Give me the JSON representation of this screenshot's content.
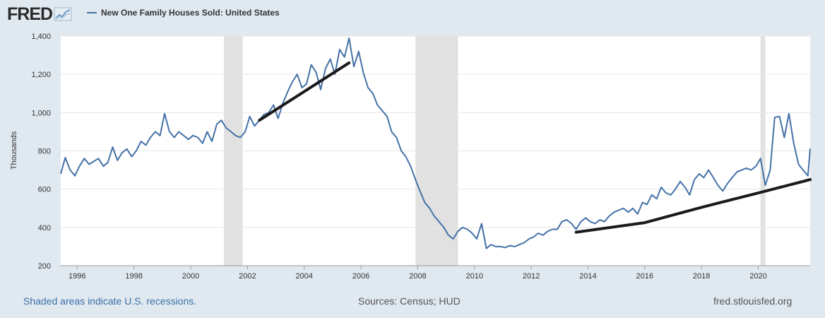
{
  "header": {
    "logo_text": "FRED",
    "logo_icon": "chart-line-icon",
    "series_label": "New One Family Houses Sold: United States"
  },
  "footer": {
    "recession_note": "Shaded areas indicate U.S. recessions.",
    "sources": "Sources: Census; HUD",
    "site": "fred.stlouisfed.org"
  },
  "colors": {
    "background": "#e1e9f0",
    "plot_bg": "#ffffff",
    "series": "#4572a7",
    "recession": "#e1e1e1",
    "trend": "#1a1a1a"
  },
  "chart_data": {
    "type": "line",
    "title": "",
    "xlabel": "",
    "ylabel": "Thousands",
    "xlim": [
      1995.42,
      2021.83
    ],
    "ylim": [
      200,
      1400
    ],
    "x_ticks": [
      "1996",
      "1998",
      "2000",
      "2002",
      "2004",
      "2006",
      "2008",
      "2010",
      "2012",
      "2014",
      "2016",
      "2018",
      "2020"
    ],
    "y_ticks": [
      "200",
      "400",
      "600",
      "800",
      "1,000",
      "1,200",
      "1,400"
    ],
    "grid": "horizontal",
    "recessions": [
      [
        2001.17,
        2001.83
      ],
      [
        2007.92,
        2009.42
      ],
      [
        2020.08,
        2020.25
      ]
    ],
    "series": [
      {
        "name": "New One Family Houses Sold: United States",
        "points": [
          [
            1995.42,
            680
          ],
          [
            1995.58,
            765
          ],
          [
            1995.75,
            700
          ],
          [
            1995.92,
            670
          ],
          [
            1996.08,
            720
          ],
          [
            1996.25,
            760
          ],
          [
            1996.42,
            730
          ],
          [
            1996.58,
            745
          ],
          [
            1996.75,
            760
          ],
          [
            1996.92,
            720
          ],
          [
            1997.08,
            740
          ],
          [
            1997.25,
            820
          ],
          [
            1997.42,
            750
          ],
          [
            1997.58,
            790
          ],
          [
            1997.75,
            810
          ],
          [
            1997.92,
            770
          ],
          [
            1998.08,
            800
          ],
          [
            1998.25,
            850
          ],
          [
            1998.42,
            830
          ],
          [
            1998.58,
            870
          ],
          [
            1998.75,
            900
          ],
          [
            1998.92,
            880
          ],
          [
            1999.08,
            995
          ],
          [
            1999.25,
            900
          ],
          [
            1999.42,
            870
          ],
          [
            1999.58,
            900
          ],
          [
            1999.75,
            880
          ],
          [
            1999.92,
            860
          ],
          [
            2000.08,
            880
          ],
          [
            2000.25,
            870
          ],
          [
            2000.42,
            840
          ],
          [
            2000.58,
            900
          ],
          [
            2000.75,
            850
          ],
          [
            2000.92,
            940
          ],
          [
            2001.08,
            960
          ],
          [
            2001.25,
            920
          ],
          [
            2001.42,
            900
          ],
          [
            2001.58,
            880
          ],
          [
            2001.75,
            870
          ],
          [
            2001.92,
            900
          ],
          [
            2002.08,
            980
          ],
          [
            2002.25,
            930
          ],
          [
            2002.42,
            960
          ],
          [
            2002.58,
            990
          ],
          [
            2002.75,
            1000
          ],
          [
            2002.92,
            1040
          ],
          [
            2003.08,
            970
          ],
          [
            2003.25,
            1050
          ],
          [
            2003.42,
            1110
          ],
          [
            2003.58,
            1160
          ],
          [
            2003.75,
            1200
          ],
          [
            2003.92,
            1130
          ],
          [
            2004.08,
            1150
          ],
          [
            2004.25,
            1250
          ],
          [
            2004.42,
            1210
          ],
          [
            2004.58,
            1120
          ],
          [
            2004.75,
            1230
          ],
          [
            2004.92,
            1280
          ],
          [
            2005.08,
            1200
          ],
          [
            2005.25,
            1330
          ],
          [
            2005.42,
            1290
          ],
          [
            2005.58,
            1389
          ],
          [
            2005.75,
            1240
          ],
          [
            2005.92,
            1320
          ],
          [
            2006.08,
            1210
          ],
          [
            2006.25,
            1130
          ],
          [
            2006.42,
            1100
          ],
          [
            2006.58,
            1040
          ],
          [
            2006.75,
            1010
          ],
          [
            2006.92,
            980
          ],
          [
            2007.08,
            900
          ],
          [
            2007.25,
            870
          ],
          [
            2007.42,
            800
          ],
          [
            2007.58,
            770
          ],
          [
            2007.75,
            720
          ],
          [
            2007.92,
            650
          ],
          [
            2008.08,
            590
          ],
          [
            2008.25,
            530
          ],
          [
            2008.42,
            500
          ],
          [
            2008.58,
            460
          ],
          [
            2008.75,
            430
          ],
          [
            2008.92,
            400
          ],
          [
            2009.08,
            360
          ],
          [
            2009.25,
            340
          ],
          [
            2009.42,
            380
          ],
          [
            2009.58,
            400
          ],
          [
            2009.75,
            390
          ],
          [
            2009.92,
            370
          ],
          [
            2010.08,
            340
          ],
          [
            2010.25,
            420
          ],
          [
            2010.42,
            290
          ],
          [
            2010.58,
            310
          ],
          [
            2010.75,
            300
          ],
          [
            2010.92,
            300
          ],
          [
            2011.08,
            295
          ],
          [
            2011.25,
            305
          ],
          [
            2011.42,
            300
          ],
          [
            2011.58,
            310
          ],
          [
            2011.75,
            320
          ],
          [
            2011.92,
            340
          ],
          [
            2012.08,
            350
          ],
          [
            2012.25,
            370
          ],
          [
            2012.42,
            360
          ],
          [
            2012.58,
            380
          ],
          [
            2012.75,
            390
          ],
          [
            2012.92,
            390
          ],
          [
            2013.08,
            430
          ],
          [
            2013.25,
            440
          ],
          [
            2013.42,
            420
          ],
          [
            2013.58,
            390
          ],
          [
            2013.75,
            430
          ],
          [
            2013.92,
            450
          ],
          [
            2014.08,
            430
          ],
          [
            2014.25,
            420
          ],
          [
            2014.42,
            440
          ],
          [
            2014.58,
            430
          ],
          [
            2014.75,
            460
          ],
          [
            2014.92,
            480
          ],
          [
            2015.08,
            490
          ],
          [
            2015.25,
            500
          ],
          [
            2015.42,
            480
          ],
          [
            2015.58,
            500
          ],
          [
            2015.75,
            470
          ],
          [
            2015.92,
            530
          ],
          [
            2016.08,
            520
          ],
          [
            2016.25,
            570
          ],
          [
            2016.42,
            550
          ],
          [
            2016.58,
            610
          ],
          [
            2016.75,
            580
          ],
          [
            2016.92,
            570
          ],
          [
            2017.08,
            600
          ],
          [
            2017.25,
            640
          ],
          [
            2017.42,
            610
          ],
          [
            2017.58,
            570
          ],
          [
            2017.75,
            650
          ],
          [
            2017.92,
            680
          ],
          [
            2018.08,
            660
          ],
          [
            2018.25,
            700
          ],
          [
            2018.42,
            660
          ],
          [
            2018.58,
            620
          ],
          [
            2018.75,
            590
          ],
          [
            2018.92,
            630
          ],
          [
            2019.08,
            660
          ],
          [
            2019.25,
            690
          ],
          [
            2019.42,
            700
          ],
          [
            2019.58,
            710
          ],
          [
            2019.75,
            700
          ],
          [
            2019.92,
            720
          ],
          [
            2020.08,
            760
          ],
          [
            2020.25,
            620
          ],
          [
            2020.42,
            700
          ],
          [
            2020.58,
            975
          ],
          [
            2020.75,
            980
          ],
          [
            2020.92,
            870
          ],
          [
            2021.08,
            995
          ],
          [
            2021.25,
            840
          ],
          [
            2021.42,
            730
          ],
          [
            2021.58,
            700
          ],
          [
            2021.75,
            670
          ],
          [
            2021.83,
            811
          ]
        ]
      }
    ],
    "trendlines": [
      [
        [
          2002.42,
          960
        ],
        [
          2005.58,
          1260
        ]
      ],
      [
        [
          2013.58,
          375
        ],
        [
          2016.0,
          425
        ],
        [
          2018.0,
          505
        ],
        [
          2020.0,
          580
        ],
        [
          2021.83,
          650
        ]
      ]
    ]
  }
}
